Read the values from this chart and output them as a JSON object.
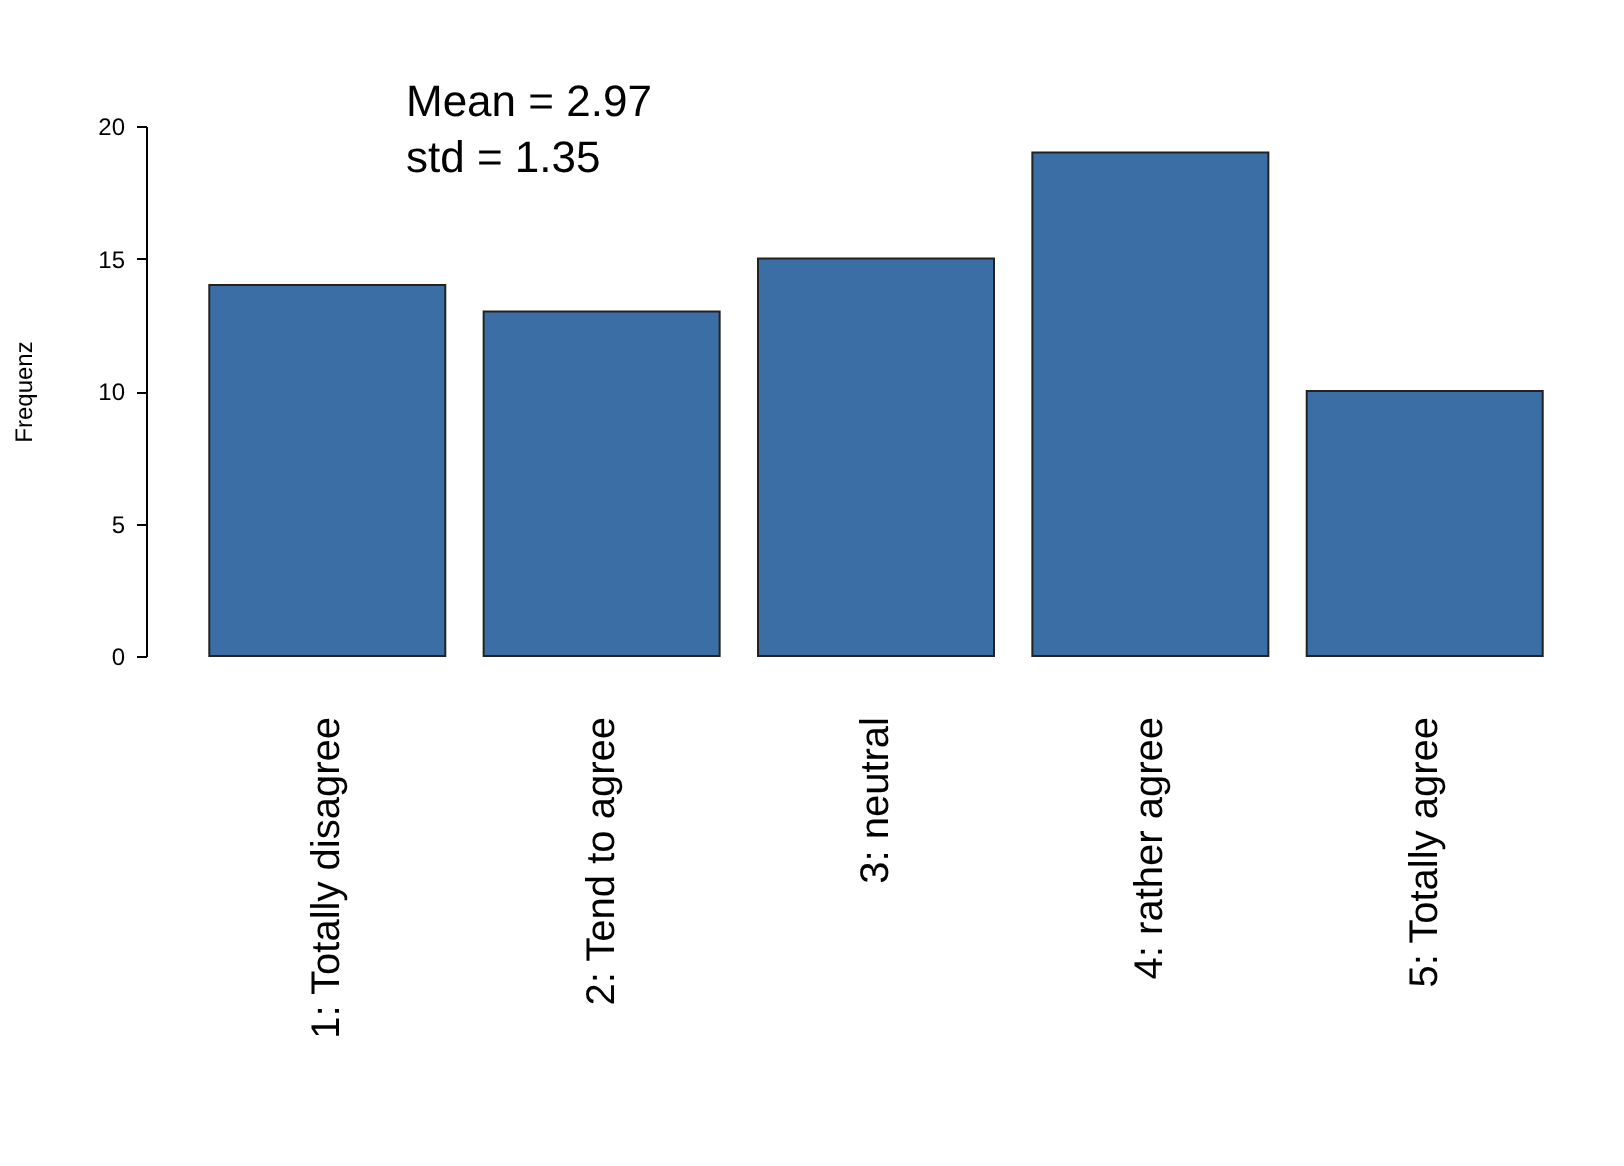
{
  "chart_data": {
    "type": "bar",
    "ylabel": "Frequenz",
    "categories": [
      "1: Totally disagree",
      "2: Tend to agree",
      "3: neutral",
      "4: rather agree",
      "5: Totally agree"
    ],
    "values": [
      14,
      13,
      15,
      19,
      10
    ],
    "color": "#3a6ea5",
    "ylim": [
      0,
      20
    ],
    "yticks": [
      0,
      5,
      10,
      15,
      20
    ],
    "grid": false,
    "annotations": [
      "Mean = 2.97",
      "std = 1.35"
    ]
  }
}
